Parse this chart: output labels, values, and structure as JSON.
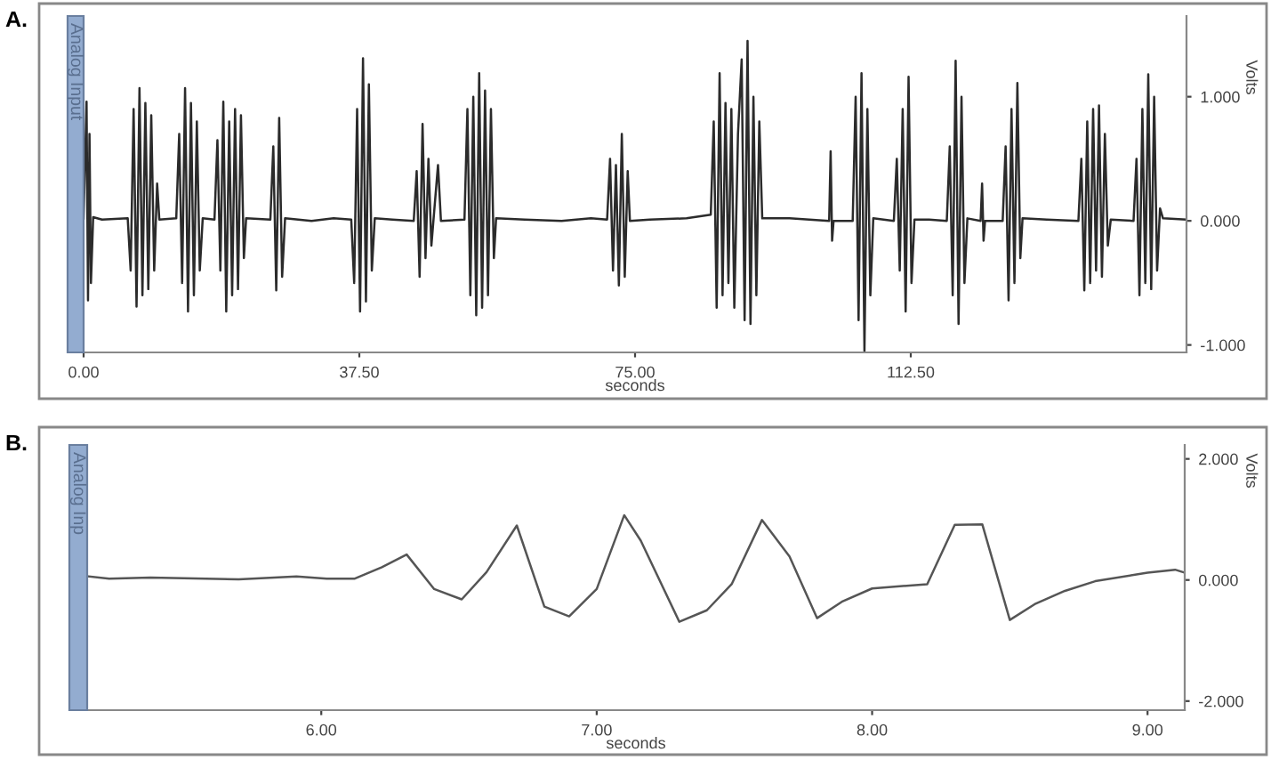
{
  "chart_data": [
    {
      "type": "line",
      "title": "A.",
      "xlabel": "seconds",
      "ylabel": "Volts",
      "annotations": [
        "Analog Input"
      ],
      "grid": false,
      "legend": false,
      "marker": "none",
      "line_style": "solid",
      "xlim": [
        0,
        150
      ],
      "ylim": [
        -1.06,
        1.65
      ],
      "xticks": [
        {
          "value": 0,
          "label": "0.00"
        },
        {
          "value": 37.5,
          "label": "37.50"
        },
        {
          "value": 75,
          "label": "75.00"
        },
        {
          "value": 112.5,
          "label": "112.50"
        }
      ],
      "yticks": [
        {
          "value": -1,
          "label": "-1.000"
        },
        {
          "value": 0,
          "label": "0.000"
        },
        {
          "value": 1,
          "label": "1.000"
        }
      ],
      "x": [
        0,
        0.4,
        0.6,
        0.8,
        1.0,
        1.3,
        2.5,
        6.0,
        6.4,
        6.8,
        7.2,
        7.6,
        8.0,
        8.4,
        8.8,
        9.2,
        9.6,
        10.0,
        10.3,
        12.6,
        13.0,
        13.4,
        13.8,
        14.2,
        14.6,
        15.0,
        15.4,
        15.8,
        16.2,
        17.8,
        18.2,
        18.6,
        19.0,
        19.4,
        19.8,
        20.2,
        20.6,
        21.0,
        21.4,
        21.8,
        22.1,
        25.4,
        25.8,
        26.2,
        26.6,
        27.0,
        27.4,
        31,
        34,
        36.4,
        36.8,
        37.2,
        37.6,
        38.0,
        38.4,
        38.8,
        39.2,
        39.6,
        42,
        44.9,
        45.3,
        45.7,
        46.1,
        46.5,
        46.9,
        47.3,
        48.2,
        48.6,
        51.8,
        52.2,
        52.6,
        53.0,
        53.4,
        53.8,
        54.2,
        54.6,
        55.0,
        55.4,
        55.8,
        56.1,
        60,
        65,
        69,
        71.2,
        71.6,
        72.0,
        72.4,
        72.8,
        73.2,
        73.6,
        74.0,
        74.3,
        77,
        82,
        85.3,
        85.7,
        86.1,
        86.5,
        86.9,
        87.3,
        87.7,
        88.1,
        88.5,
        89.0,
        89.5,
        89.9,
        90.3,
        90.7,
        91.1,
        91.5,
        91.9,
        92.3,
        96,
        101.4,
        101.6,
        101.8,
        102.0,
        104.6,
        105.0,
        105.4,
        105.8,
        106.2,
        106.6,
        107.0,
        107.4,
        110.2,
        110.6,
        111.0,
        111.4,
        111.8,
        112.2,
        112.6,
        113.0,
        115,
        117.4,
        117.8,
        118.2,
        118.6,
        119.0,
        119.4,
        119.8,
        120.2,
        122.0,
        122.2,
        122.4,
        122.6,
        125.0,
        125.4,
        125.8,
        126.2,
        126.6,
        127.0,
        127.4,
        127.7,
        131,
        135.3,
        135.7,
        136.1,
        136.5,
        136.9,
        137.3,
        137.7,
        138.1,
        138.5,
        138.9,
        139.3,
        139.7,
        142.8,
        143.2,
        143.6,
        144.0,
        144.4,
        144.8,
        145.2,
        145.6,
        146.0,
        146.4,
        146.8,
        150
      ],
      "series": [
        {
          "color": "#2b2b2b",
          "values": [
            0.02,
            0.96,
            -0.64,
            0.7,
            -0.5,
            0.03,
            0.01,
            0.02,
            -0.4,
            0.9,
            -0.69,
            1.07,
            -0.6,
            0.95,
            -0.55,
            0.85,
            -0.4,
            0.3,
            0.01,
            0.02,
            0.7,
            -0.5,
            1.07,
            -0.73,
            0.95,
            -0.6,
            0.8,
            -0.4,
            0.02,
            0.01,
            0.65,
            -0.4,
            0.96,
            -0.73,
            0.8,
            -0.6,
            0.9,
            -0.55,
            0.85,
            -0.3,
            0.02,
            0.01,
            0.6,
            -0.56,
            0.83,
            -0.45,
            0.02,
            0.0,
            0.02,
            0.01,
            -0.5,
            0.9,
            -0.73,
            1.31,
            -0.65,
            1.1,
            -0.4,
            0.02,
            0.01,
            0.0,
            0.4,
            -0.45,
            0.78,
            -0.3,
            0.5,
            -0.2,
            0.45,
            0.0,
            0.01,
            0.9,
            -0.6,
            1.0,
            -0.76,
            1.19,
            -0.7,
            1.05,
            -0.6,
            0.9,
            -0.3,
            0.02,
            0.01,
            0.0,
            0.02,
            0.01,
            0.5,
            -0.4,
            0.45,
            -0.52,
            0.7,
            -0.45,
            0.4,
            0.0,
            0.01,
            0.02,
            0.05,
            0.8,
            -0.7,
            1.19,
            -0.6,
            0.95,
            -0.5,
            0.9,
            -0.7,
            0.7,
            1.3,
            -0.8,
            1.45,
            -0.83,
            1.0,
            -0.6,
            0.8,
            0.02,
            0.02,
            0.0,
            0.56,
            -0.16,
            0.0,
            0.0,
            1.0,
            -0.8,
            1.19,
            -1.05,
            0.9,
            -0.6,
            0.02,
            0.0,
            0.5,
            -0.4,
            0.9,
            -0.73,
            1.16,
            -0.5,
            0.01,
            0.01,
            0.0,
            0.6,
            -0.6,
            1.29,
            -0.83,
            1.0,
            -0.5,
            0.02,
            0.0,
            0.3,
            -0.16,
            0.0,
            0.0,
            0.6,
            -0.64,
            0.9,
            -0.5,
            1.11,
            -0.3,
            0.02,
            0.01,
            0.0,
            0.5,
            -0.56,
            0.8,
            -0.5,
            0.9,
            -0.4,
            0.93,
            -0.45,
            0.7,
            -0.2,
            0.01,
            0.0,
            0.5,
            -0.6,
            0.9,
            -0.5,
            1.18,
            -0.55,
            1.0,
            -0.4,
            0.1,
            0.02,
            0.01
          ]
        }
      ]
    },
    {
      "type": "line",
      "title": "B.",
      "xlabel": "seconds",
      "ylabel": "Volts",
      "annotations": [
        "Analog Inp"
      ],
      "grid": false,
      "legend": false,
      "marker": "none",
      "line_style": "solid",
      "xlim": [
        5.15,
        9.135
      ],
      "ylim": [
        -2.15,
        2.23
      ],
      "xticks": [
        {
          "value": 6,
          "label": "6.00"
        },
        {
          "value": 7,
          "label": "7.00"
        },
        {
          "value": 8,
          "label": "8.00"
        },
        {
          "value": 9,
          "label": "9.00"
        }
      ],
      "yticks": [
        {
          "value": -2,
          "label": "-2.000"
        },
        {
          "value": 0,
          "label": "0.000"
        },
        {
          "value": 2,
          "label": "2.000"
        }
      ],
      "x": [
        5.155,
        5.23,
        5.38,
        5.7,
        5.91,
        6.02,
        6.12,
        6.22,
        6.31,
        6.41,
        6.51,
        6.6,
        6.71,
        6.81,
        6.9,
        7.0,
        7.1,
        7.16,
        7.3,
        7.4,
        7.49,
        7.6,
        7.7,
        7.8,
        7.89,
        8.0,
        8.2,
        8.3,
        8.4,
        8.5,
        8.59,
        8.7,
        8.81,
        9.0,
        9.1,
        9.135
      ],
      "series": [
        {
          "color": "#555555",
          "values": [
            0.06,
            0.02,
            0.04,
            0.01,
            0.06,
            0.02,
            0.02,
            0.21,
            0.42,
            -0.15,
            -0.32,
            0.13,
            0.9,
            -0.44,
            -0.6,
            -0.15,
            1.07,
            0.65,
            -0.69,
            -0.5,
            -0.07,
            0.99,
            0.39,
            -0.63,
            -0.36,
            -0.14,
            -0.07,
            0.91,
            0.92,
            -0.66,
            -0.4,
            -0.18,
            -0.02,
            0.12,
            0.17,
            0.12
          ]
        }
      ]
    }
  ]
}
